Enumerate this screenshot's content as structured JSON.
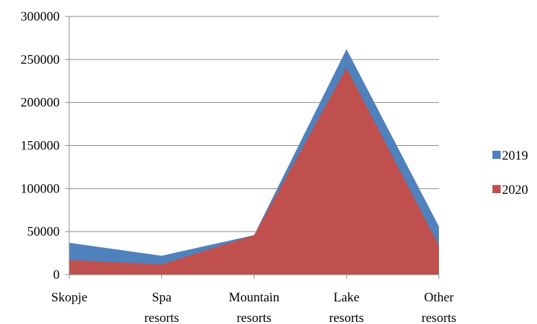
{
  "chart_data": {
    "type": "area",
    "categories": [
      [
        "Skopje"
      ],
      [
        "Spa",
        "resorts"
      ],
      [
        "Mountain",
        "resorts"
      ],
      [
        "Lake",
        "resorts"
      ],
      [
        "Other",
        "resorts"
      ]
    ],
    "series": [
      {
        "name": "2019",
        "values": [
          37000,
          22000,
          46000,
          262000,
          56000
        ],
        "color": "#4f81bd"
      },
      {
        "name": "2020",
        "values": [
          17000,
          12000,
          46000,
          240000,
          34000
        ],
        "color": "#c0504d"
      }
    ],
    "y_ticks": [
      0,
      50000,
      100000,
      150000,
      200000,
      250000,
      300000
    ],
    "ylim": [
      0,
      300000
    ],
    "gridlines": true,
    "legend_position": "right",
    "title": "",
    "xlabel": "",
    "ylabel": ""
  }
}
